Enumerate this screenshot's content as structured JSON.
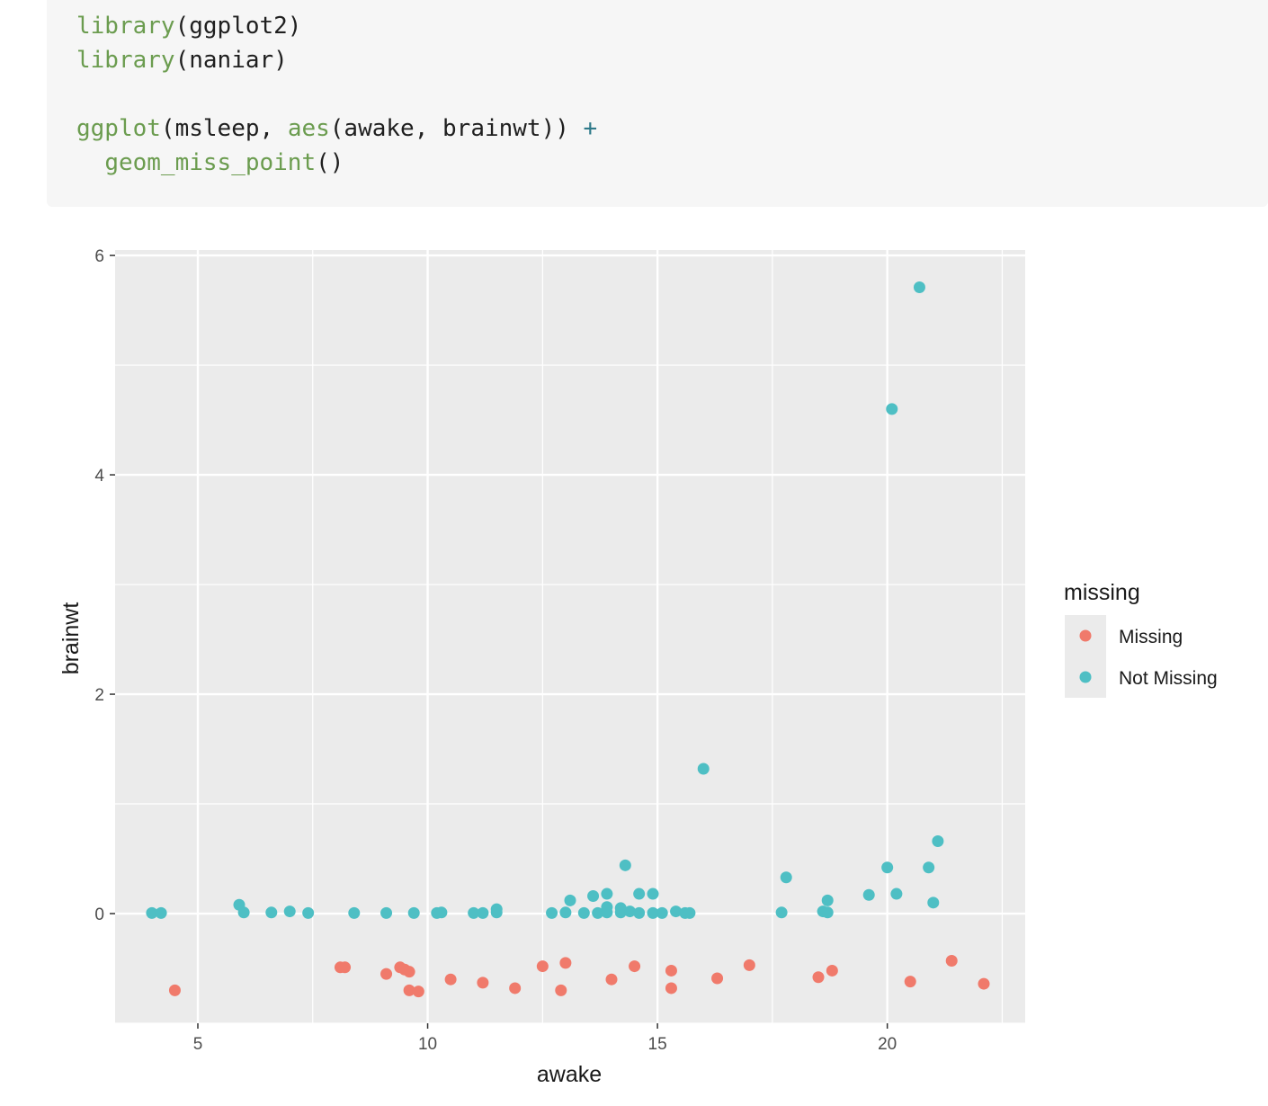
{
  "code": {
    "lines": [
      [
        {
          "t": "fn",
          "v": "library"
        },
        {
          "t": "plain",
          "v": "(ggplot2)"
        }
      ],
      [
        {
          "t": "fn",
          "v": "library"
        },
        {
          "t": "plain",
          "v": "(naniar)"
        }
      ],
      [],
      [
        {
          "t": "fn",
          "v": "ggplot"
        },
        {
          "t": "plain",
          "v": "(msleep, "
        },
        {
          "t": "fn",
          "v": "aes"
        },
        {
          "t": "plain",
          "v": "(awake, brainwt)) "
        },
        {
          "t": "op",
          "v": "+"
        }
      ],
      [
        {
          "t": "plain",
          "v": "  "
        },
        {
          "t": "fn",
          "v": "geom_miss_point"
        },
        {
          "t": "plain",
          "v": "()"
        }
      ]
    ]
  },
  "colors": {
    "missing": "#f07a6b",
    "not_missing": "#4ebfc4",
    "panel_bg": "#ebebeb",
    "grid": "#ffffff"
  },
  "chart_data": {
    "type": "scatter",
    "xlabel": "awake",
    "ylabel": "brainwt",
    "xlim": [
      3.2,
      23.0
    ],
    "ylim": [
      -1.0,
      6.05
    ],
    "x_ticks": [
      5,
      10,
      15,
      20
    ],
    "y_ticks": [
      0,
      2,
      4,
      6
    ],
    "grid": true,
    "legend": {
      "title": "missing",
      "position": "right",
      "entries": [
        "Missing",
        "Not Missing"
      ]
    },
    "series": [
      {
        "name": "Missing",
        "color_key": "missing",
        "points": [
          [
            4.5,
            -0.7
          ],
          [
            8.1,
            -0.49
          ],
          [
            8.2,
            -0.49
          ],
          [
            9.1,
            -0.55
          ],
          [
            9.4,
            -0.49
          ],
          [
            9.5,
            -0.51
          ],
          [
            9.6,
            -0.53
          ],
          [
            9.6,
            -0.7
          ],
          [
            9.8,
            -0.71
          ],
          [
            10.5,
            -0.6
          ],
          [
            11.2,
            -0.63
          ],
          [
            11.9,
            -0.68
          ],
          [
            12.5,
            -0.48
          ],
          [
            12.9,
            -0.7
          ],
          [
            13.0,
            -0.45
          ],
          [
            14.0,
            -0.6
          ],
          [
            14.5,
            -0.48
          ],
          [
            15.3,
            -0.52
          ],
          [
            15.3,
            -0.68
          ],
          [
            16.3,
            -0.59
          ],
          [
            17.0,
            -0.47
          ],
          [
            18.5,
            -0.58
          ],
          [
            18.8,
            -0.52
          ],
          [
            20.5,
            -0.62
          ],
          [
            21.4,
            -0.43
          ],
          [
            22.1,
            -0.64
          ]
        ]
      },
      {
        "name": "Not Missing",
        "color_key": "not_missing",
        "points": [
          [
            4.0,
            0.005
          ],
          [
            4.2,
            0.005
          ],
          [
            5.9,
            0.08
          ],
          [
            6.0,
            0.01
          ],
          [
            6.6,
            0.01
          ],
          [
            7.0,
            0.02
          ],
          [
            7.4,
            0.005
          ],
          [
            8.4,
            0.005
          ],
          [
            9.1,
            0.005
          ],
          [
            9.7,
            0.005
          ],
          [
            10.2,
            0.005
          ],
          [
            10.3,
            0.01
          ],
          [
            11.0,
            0.005
          ],
          [
            11.2,
            0.005
          ],
          [
            11.5,
            0.01
          ],
          [
            11.5,
            0.04
          ],
          [
            12.7,
            0.005
          ],
          [
            13.0,
            0.01
          ],
          [
            13.1,
            0.12
          ],
          [
            13.4,
            0.005
          ],
          [
            13.6,
            0.16
          ],
          [
            13.7,
            0.005
          ],
          [
            13.9,
            0.01
          ],
          [
            13.9,
            0.06
          ],
          [
            13.9,
            0.18
          ],
          [
            14.2,
            0.01
          ],
          [
            14.2,
            0.05
          ],
          [
            14.3,
            0.44
          ],
          [
            14.4,
            0.02
          ],
          [
            14.6,
            0.005
          ],
          [
            14.6,
            0.18
          ],
          [
            14.9,
            0.005
          ],
          [
            14.9,
            0.18
          ],
          [
            15.1,
            0.005
          ],
          [
            15.4,
            0.02
          ],
          [
            15.6,
            0.005
          ],
          [
            15.7,
            0.005
          ],
          [
            16.0,
            1.32
          ],
          [
            17.7,
            0.01
          ],
          [
            17.8,
            0.33
          ],
          [
            18.6,
            0.02
          ],
          [
            18.7,
            0.01
          ],
          [
            18.7,
            0.12
          ],
          [
            19.6,
            0.17
          ],
          [
            20.0,
            0.42
          ],
          [
            20.1,
            4.6
          ],
          [
            20.2,
            0.18
          ],
          [
            20.7,
            5.71
          ],
          [
            20.9,
            0.42
          ],
          [
            21.0,
            0.1
          ],
          [
            21.1,
            0.66
          ]
        ]
      }
    ]
  }
}
